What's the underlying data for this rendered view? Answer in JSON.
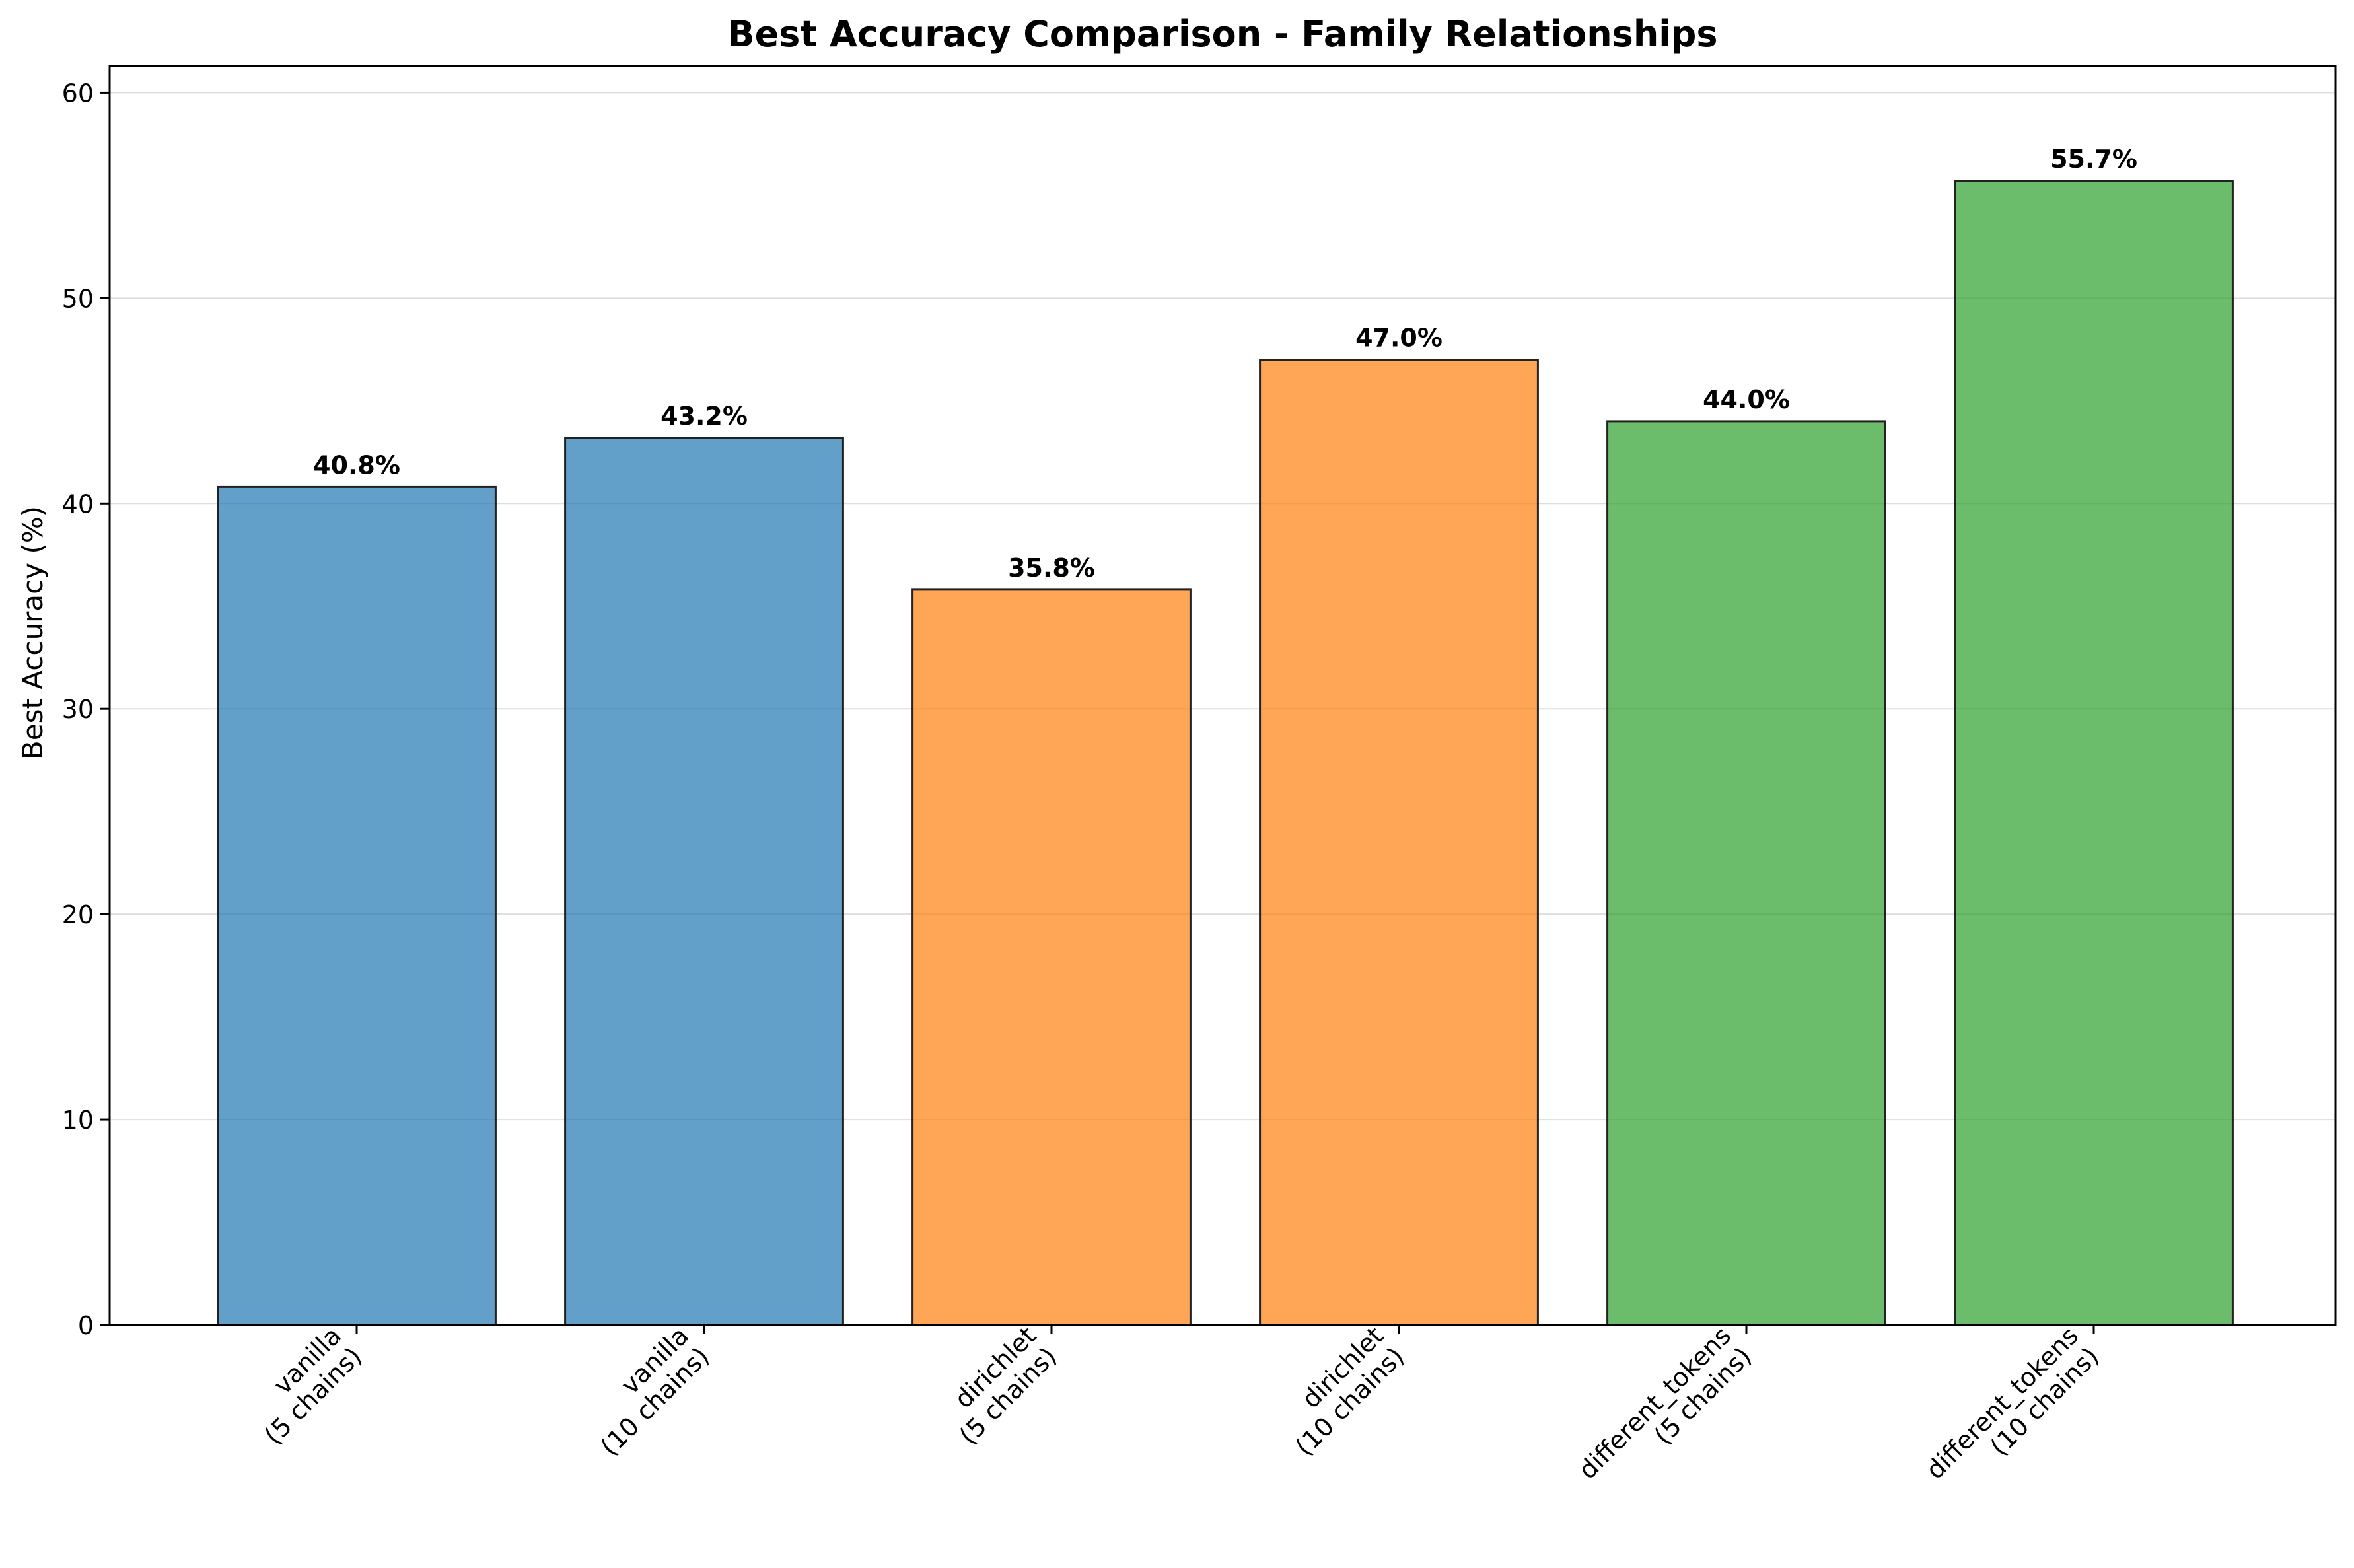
{
  "chart_data": {
    "type": "bar",
    "title": "Best Accuracy Comparison - Family Relationships",
    "xlabel": "",
    "ylabel": "Best Accuracy (%)",
    "ylim": [
      0,
      61.3
    ],
    "yticks": [
      0,
      10,
      20,
      30,
      40,
      50,
      60
    ],
    "grid": "horizontal",
    "categories": [
      [
        "vanilla",
        "(5 chains)"
      ],
      [
        "vanilla",
        "(10 chains)"
      ],
      [
        "dirichlet",
        "(5 chains)"
      ],
      [
        "dirichlet",
        "(10 chains)"
      ],
      [
        "different_tokens",
        "(5 chains)"
      ],
      [
        "different_tokens",
        "(10 chains)"
      ]
    ],
    "values": [
      40.8,
      43.2,
      35.8,
      47.0,
      44.0,
      55.7
    ],
    "value_labels": [
      "40.8%",
      "43.2%",
      "35.8%",
      "47.0%",
      "44.0%",
      "55.7%"
    ],
    "colors": [
      "#1f77b4",
      "#1f77b4",
      "#ff7f0e",
      "#ff7f0e",
      "#2ca02c",
      "#2ca02c"
    ],
    "bar_opacity": 0.7,
    "edge_color": "#222222"
  }
}
